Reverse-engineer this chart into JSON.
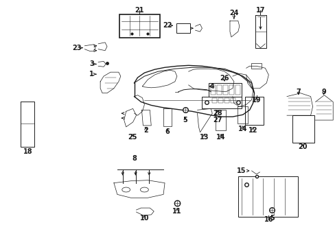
{
  "background_color": "#ffffff",
  "line_color": "#1a1a1a",
  "fig_width": 4.89,
  "fig_height": 3.6,
  "dpi": 100,
  "label_fontsize": 7.0
}
